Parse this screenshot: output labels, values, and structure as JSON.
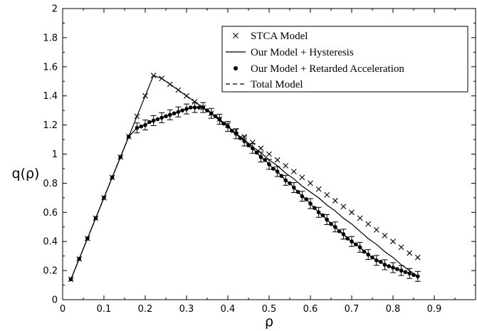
{
  "chart_data": {
    "type": "line",
    "xlabel": "ρ",
    "ylabel": "q(ρ)",
    "xlim": [
      0,
      1.0
    ],
    "ylim": [
      0,
      2
    ],
    "xticks": [
      "0",
      "0.1",
      "0.2",
      "0.3",
      "0.4",
      "0.5",
      "0.6",
      "0.7",
      "0.8",
      "0.9"
    ],
    "yticks": [
      "0",
      "0.2",
      "0.4",
      "0.6",
      "0.8",
      "1",
      "1.2",
      "1.4",
      "1.6",
      "1.8",
      "2"
    ],
    "grid": false,
    "legend_position": "top-right",
    "series": [
      {
        "name": "STCA Model",
        "marker": "x",
        "line": "none",
        "x": [
          0.02,
          0.04,
          0.06,
          0.08,
          0.1,
          0.12,
          0.14,
          0.16,
          0.18,
          0.2,
          0.22,
          0.24,
          0.26,
          0.28,
          0.3,
          0.32,
          0.34,
          0.36,
          0.38,
          0.4,
          0.42,
          0.44,
          0.46,
          0.48,
          0.5,
          0.52,
          0.54,
          0.56,
          0.58,
          0.6,
          0.62,
          0.64,
          0.66,
          0.68,
          0.7,
          0.72,
          0.74,
          0.76,
          0.78,
          0.8,
          0.82,
          0.84,
          0.86
        ],
        "y": [
          0.14,
          0.28,
          0.42,
          0.56,
          0.7,
          0.84,
          0.98,
          1.12,
          1.26,
          1.4,
          1.54,
          1.52,
          1.48,
          1.44,
          1.4,
          1.36,
          1.32,
          1.28,
          1.24,
          1.2,
          1.16,
          1.12,
          1.08,
          1.04,
          1.0,
          0.96,
          0.92,
          0.88,
          0.84,
          0.8,
          0.76,
          0.72,
          0.68,
          0.64,
          0.6,
          0.56,
          0.52,
          0.48,
          0.44,
          0.4,
          0.36,
          0.32,
          0.29
        ]
      },
      {
        "name": "Our Model + Hysteresis",
        "marker": "none",
        "line": "solid",
        "x": [
          0.02,
          0.04,
          0.06,
          0.08,
          0.1,
          0.12,
          0.14,
          0.16,
          0.18,
          0.2,
          0.22,
          0.24,
          0.26,
          0.28,
          0.3,
          0.32,
          0.34,
          0.36,
          0.38,
          0.4,
          0.42,
          0.44,
          0.46,
          0.48,
          0.5,
          0.52,
          0.54,
          0.56,
          0.58,
          0.6,
          0.62,
          0.64,
          0.66,
          0.68,
          0.7,
          0.72,
          0.74,
          0.76,
          0.78,
          0.8,
          0.82,
          0.84,
          0.86
        ],
        "y": [
          0.14,
          0.28,
          0.42,
          0.56,
          0.7,
          0.84,
          0.98,
          1.12,
          1.26,
          1.4,
          1.54,
          1.52,
          1.48,
          1.44,
          1.4,
          1.36,
          1.32,
          1.28,
          1.23,
          1.19,
          1.14,
          1.1,
          1.05,
          1.01,
          0.96,
          0.92,
          0.87,
          0.83,
          0.78,
          0.74,
          0.7,
          0.65,
          0.61,
          0.56,
          0.52,
          0.47,
          0.42,
          0.38,
          0.33,
          0.29,
          0.24,
          0.2,
          0.16
        ]
      },
      {
        "name": "Our Model + Retarded Acceleration",
        "marker": "filled-circle",
        "line": "solid",
        "x": [
          0.02,
          0.04,
          0.06,
          0.08,
          0.1,
          0.12,
          0.14,
          0.16,
          0.18,
          0.19,
          0.2,
          0.21,
          0.22,
          0.23,
          0.24,
          0.25,
          0.26,
          0.27,
          0.28,
          0.29,
          0.3,
          0.31,
          0.32,
          0.33,
          0.34,
          0.35,
          0.36,
          0.37,
          0.38,
          0.39,
          0.4,
          0.41,
          0.42,
          0.43,
          0.44,
          0.45,
          0.46,
          0.47,
          0.48,
          0.49,
          0.5,
          0.51,
          0.52,
          0.53,
          0.54,
          0.55,
          0.56,
          0.57,
          0.58,
          0.59,
          0.6,
          0.61,
          0.62,
          0.63,
          0.64,
          0.65,
          0.66,
          0.67,
          0.68,
          0.69,
          0.7,
          0.71,
          0.72,
          0.73,
          0.74,
          0.75,
          0.76,
          0.77,
          0.78,
          0.79,
          0.8,
          0.81,
          0.82,
          0.83,
          0.84,
          0.85,
          0.86
        ],
        "y": [
          0.14,
          0.28,
          0.42,
          0.56,
          0.7,
          0.84,
          0.98,
          1.12,
          1.18,
          1.19,
          1.2,
          1.22,
          1.23,
          1.24,
          1.25,
          1.26,
          1.27,
          1.28,
          1.29,
          1.3,
          1.31,
          1.32,
          1.32,
          1.32,
          1.32,
          1.3,
          1.28,
          1.26,
          1.24,
          1.21,
          1.19,
          1.16,
          1.14,
          1.11,
          1.09,
          1.06,
          1.04,
          1.01,
          0.98,
          0.96,
          0.93,
          0.9,
          0.88,
          0.85,
          0.82,
          0.8,
          0.77,
          0.74,
          0.71,
          0.69,
          0.66,
          0.63,
          0.6,
          0.58,
          0.55,
          0.52,
          0.5,
          0.47,
          0.45,
          0.42,
          0.4,
          0.38,
          0.36,
          0.33,
          0.31,
          0.29,
          0.27,
          0.26,
          0.24,
          0.23,
          0.22,
          0.21,
          0.2,
          0.19,
          0.18,
          0.17,
          0.16
        ]
      },
      {
        "name": "Total Model",
        "marker": "none",
        "line": "dashed",
        "x": [
          0.02,
          0.04,
          0.06,
          0.08,
          0.1,
          0.12,
          0.14,
          0.16,
          0.18,
          0.2,
          0.22,
          0.24,
          0.26,
          0.28,
          0.3,
          0.32,
          0.34,
          0.36,
          0.38,
          0.4,
          0.42,
          0.44,
          0.46,
          0.48,
          0.5,
          0.52,
          0.54,
          0.56,
          0.58,
          0.6,
          0.62,
          0.64,
          0.66,
          0.68,
          0.7,
          0.72,
          0.74,
          0.76,
          0.78,
          0.8,
          0.82,
          0.84,
          0.86
        ],
        "y": [
          0.14,
          0.28,
          0.42,
          0.56,
          0.7,
          0.84,
          0.98,
          1.12,
          1.18,
          1.2,
          1.23,
          1.25,
          1.27,
          1.29,
          1.31,
          1.32,
          1.32,
          1.28,
          1.24,
          1.19,
          1.14,
          1.09,
          1.04,
          0.98,
          0.93,
          0.88,
          0.82,
          0.77,
          0.71,
          0.66,
          0.6,
          0.55,
          0.5,
          0.45,
          0.4,
          0.36,
          0.31,
          0.27,
          0.24,
          0.22,
          0.2,
          0.18,
          0.16
        ]
      }
    ]
  }
}
